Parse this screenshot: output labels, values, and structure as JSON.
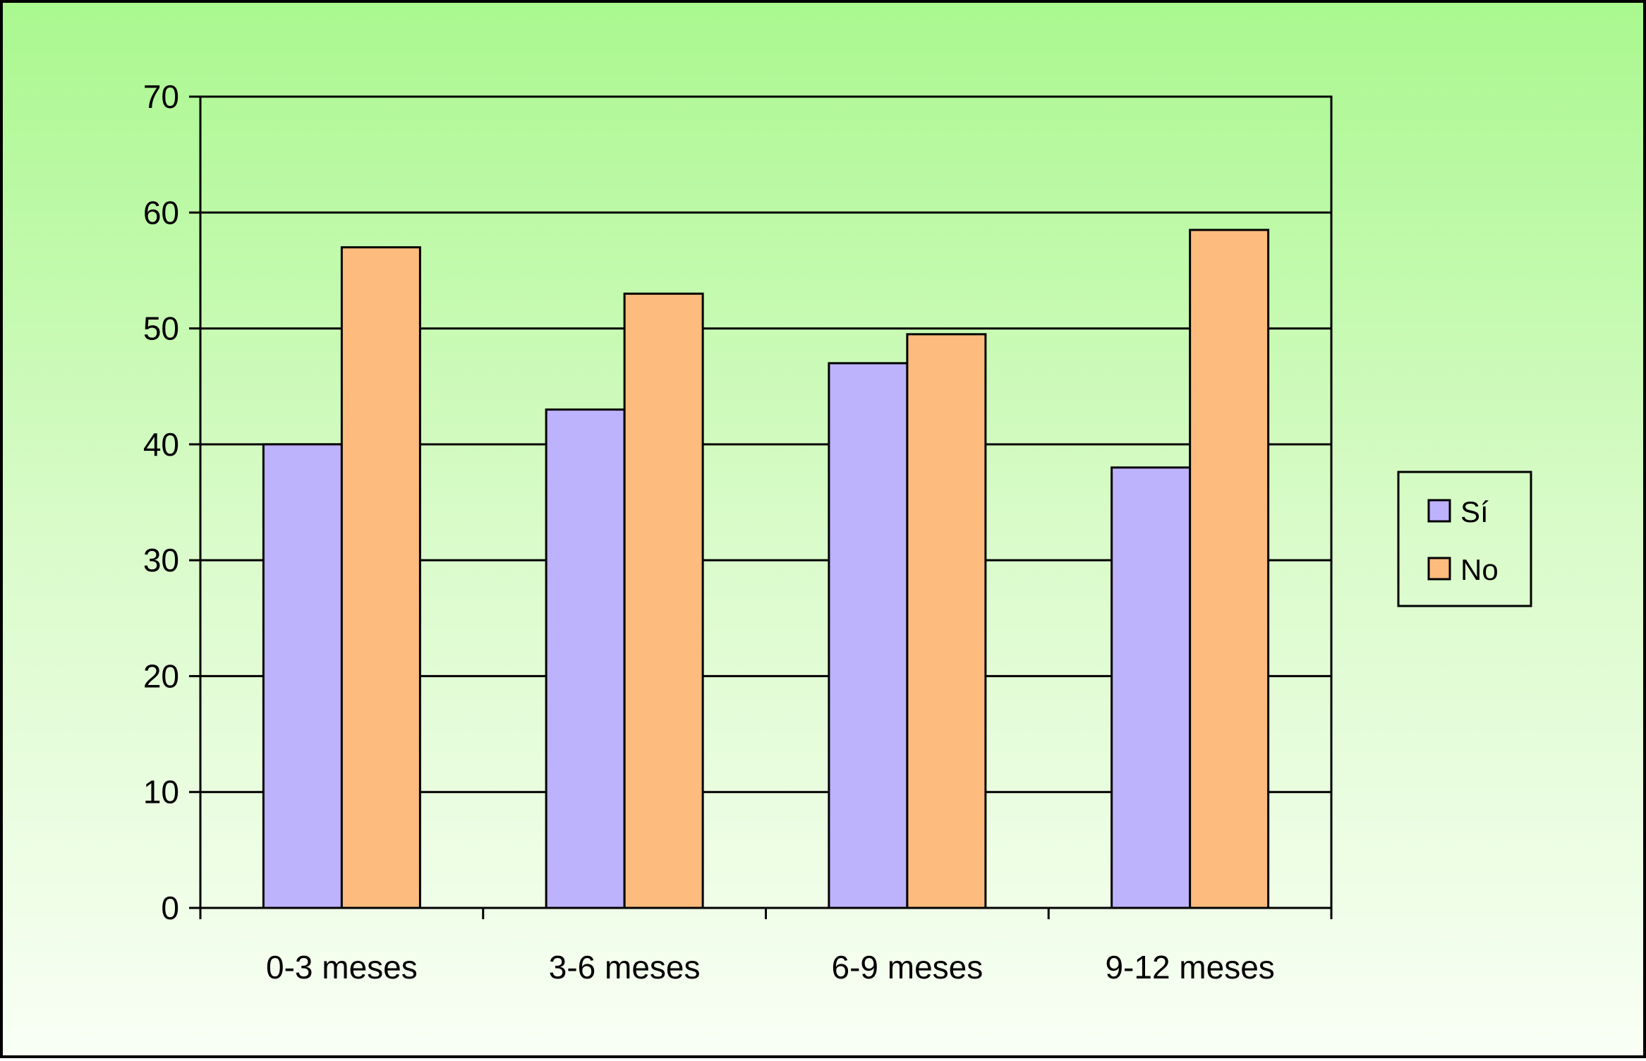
{
  "chart_data": {
    "type": "bar",
    "categories": [
      "0-3 meses",
      "3-6 meses",
      "6-9 meses",
      "9-12 meses"
    ],
    "series": [
      {
        "name": "Sí",
        "values": [
          40,
          43,
          47,
          38
        ],
        "color": "#bdb2fc"
      },
      {
        "name": "No",
        "values": [
          57,
          53,
          49.5,
          58.5
        ],
        "color": "#fdbb7e"
      }
    ],
    "ylim": [
      0,
      70
    ],
    "yticks": [
      0,
      10,
      20,
      30,
      40,
      50,
      60,
      70
    ],
    "grid": true,
    "legend": "right",
    "background": {
      "top": "#aaf88f",
      "bottom": "#f9fff5"
    },
    "title": "",
    "xlabel": "",
    "ylabel": ""
  }
}
